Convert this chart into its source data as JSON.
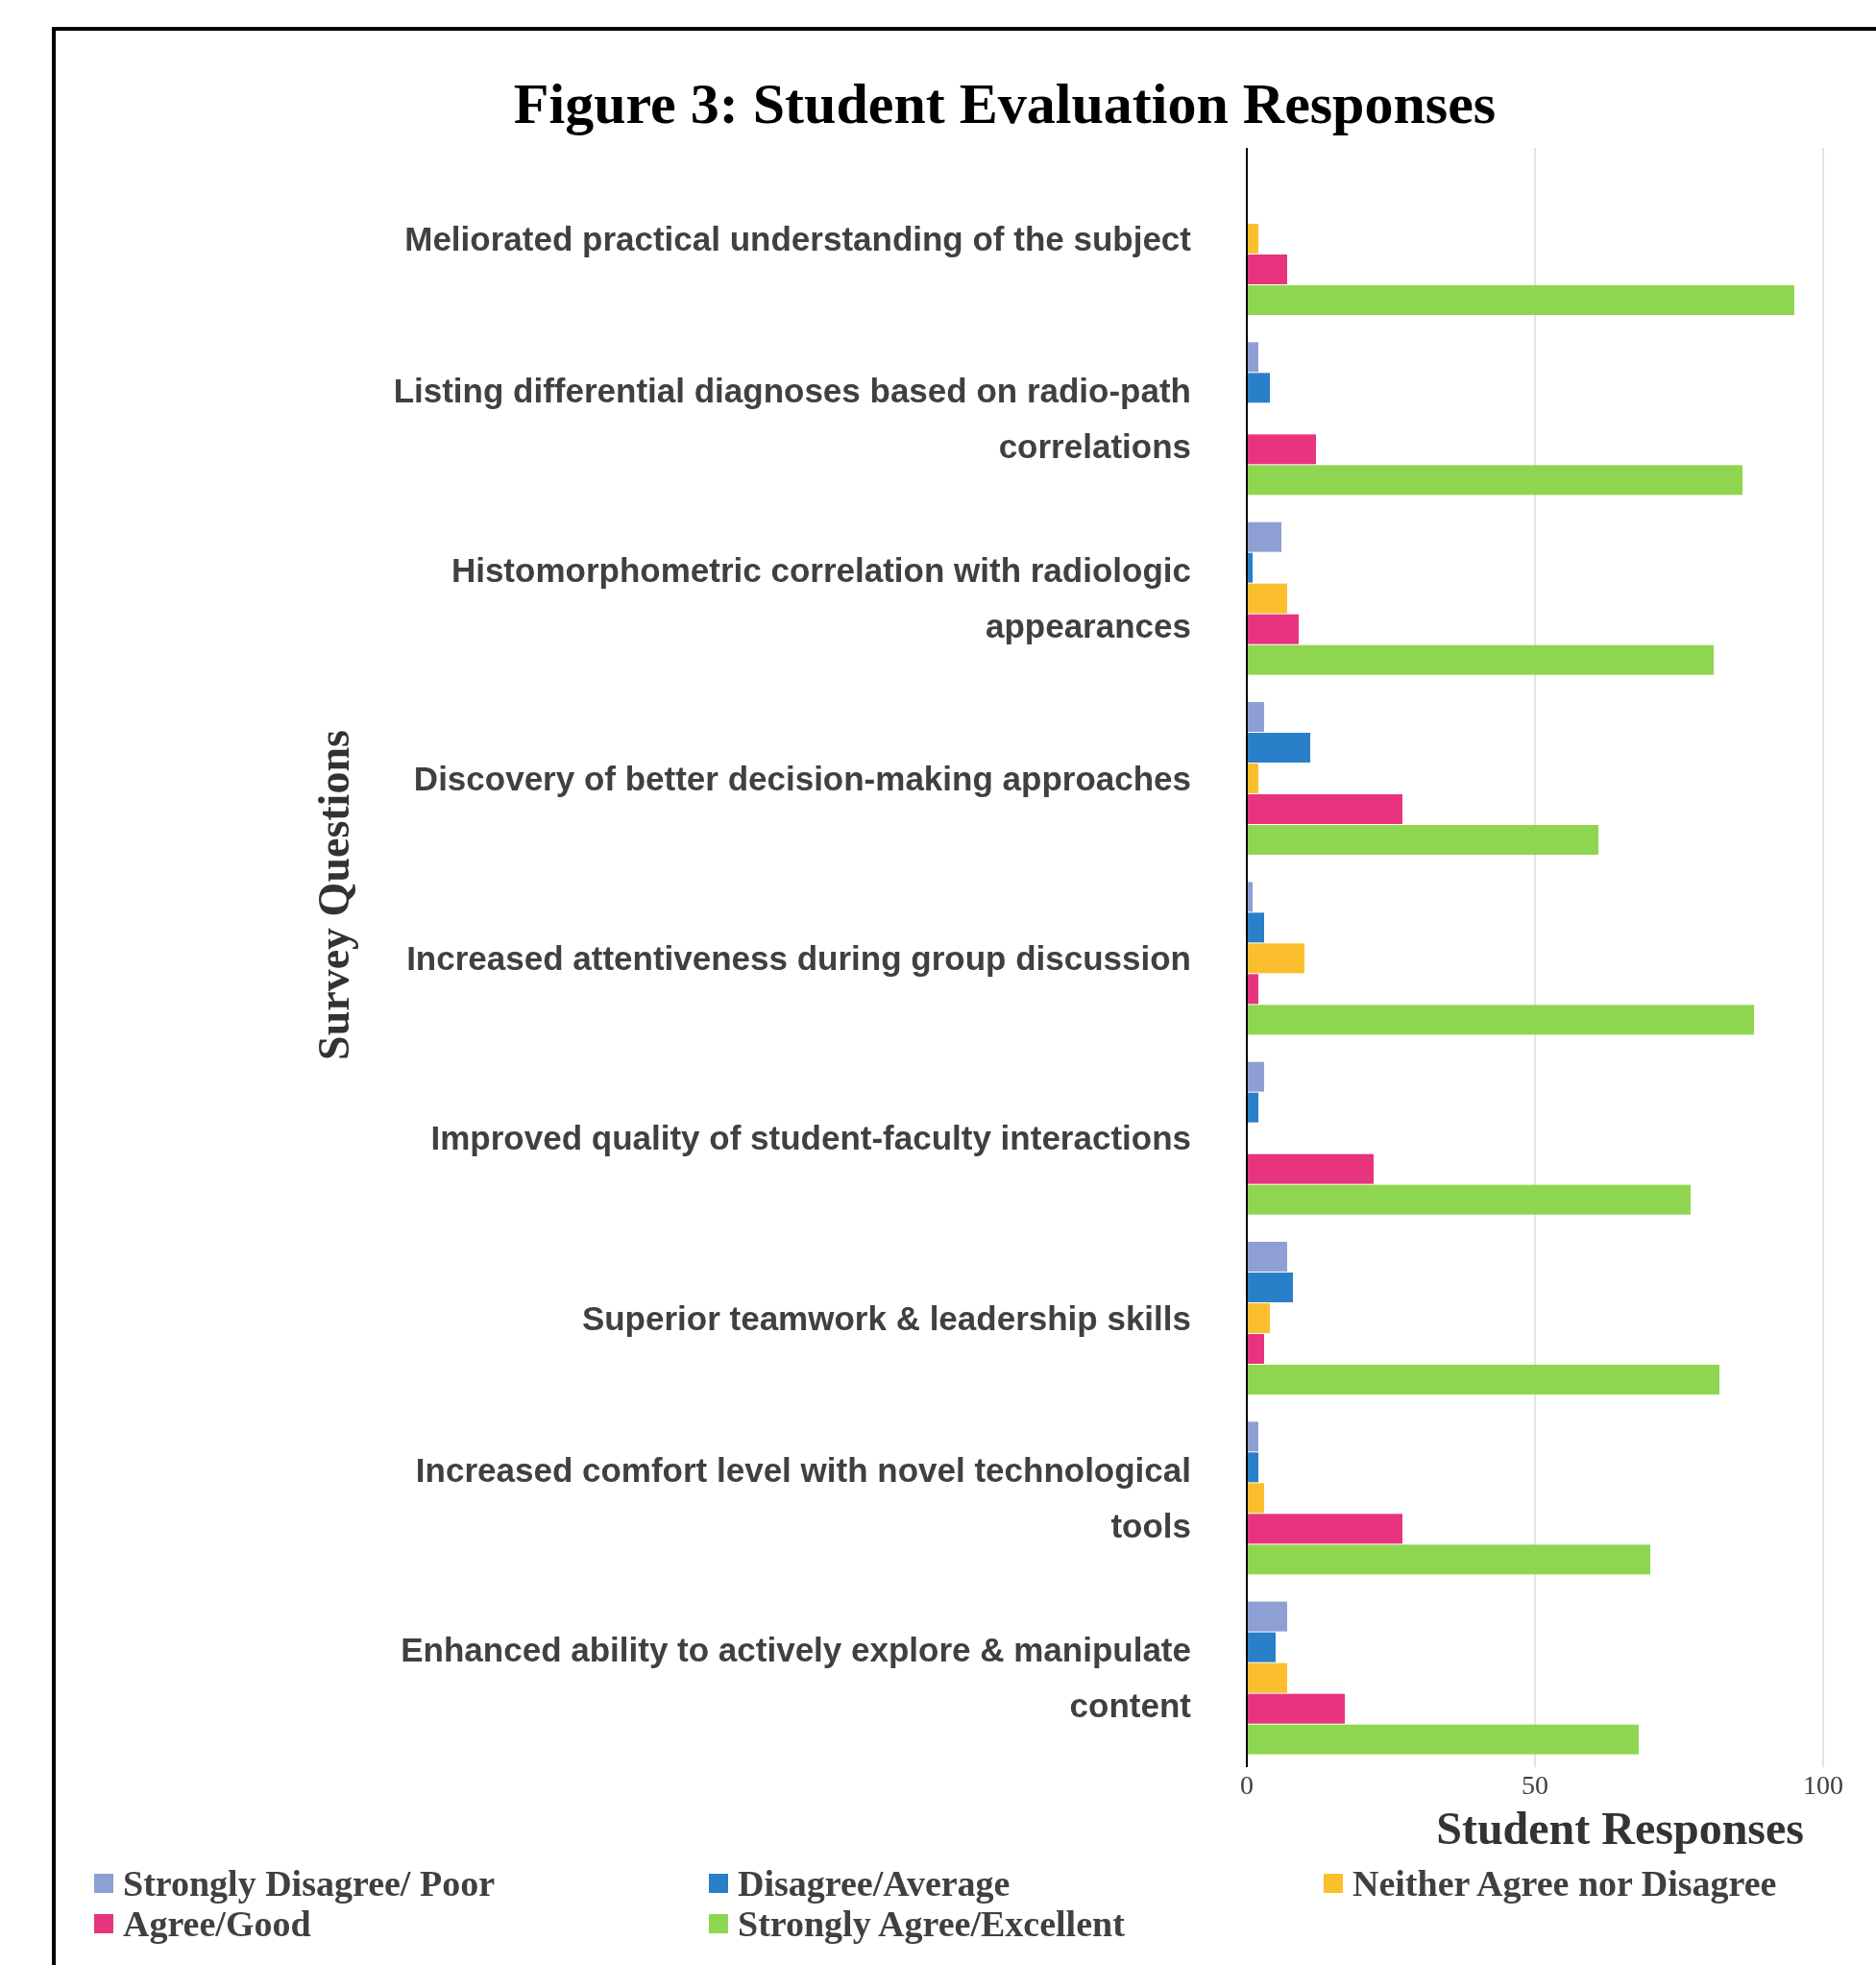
{
  "chart_data": {
    "type": "bar",
    "orientation": "horizontal",
    "title": "Figure 3: Student Evaluation Responses",
    "xlabel": "Student Responses",
    "ylabel": "Survey Questions",
    "categories": [
      "Meliorated practical understanding of the subject",
      "Listing differential diagnoses based on radio-path correlations",
      "Histomorphometric correlation with radiologic appearances",
      "Discovery of better decision-making approaches",
      "Increased attentiveness during group discussion",
      "Improved quality of student-faculty interactions",
      "Superior teamwork & leadership skills",
      "Increased comfort level with novel technological tools",
      "Enhanced ability to actively explore & manipulate content"
    ],
    "series": [
      {
        "name": "Strongly Disagree/ Poor",
        "color": "#8e9fd4",
        "values": [
          0,
          2,
          6,
          3,
          1,
          3,
          7,
          2,
          7
        ]
      },
      {
        "name": "Disagree/Average",
        "color": "#2a7fc9",
        "values": [
          0,
          4,
          1,
          11,
          3,
          2,
          8,
          2,
          5
        ]
      },
      {
        "name": "Neither Agree nor Disagree",
        "color": "#fbbf2e",
        "values": [
          2,
          0,
          7,
          2,
          10,
          0,
          4,
          3,
          7
        ]
      },
      {
        "name": "Agree/Good",
        "color": "#e8347f",
        "values": [
          7,
          12,
          9,
          27,
          2,
          22,
          3,
          27,
          17
        ]
      },
      {
        "name": "Strongly Agree/Excellent",
        "color": "#8fd650",
        "values": [
          95,
          86,
          81,
          61,
          88,
          77,
          82,
          70,
          68
        ]
      }
    ],
    "xlim": [
      0,
      100
    ],
    "xticks": [
      0,
      50,
      100
    ],
    "grid": "x",
    "legend": "bottom"
  }
}
